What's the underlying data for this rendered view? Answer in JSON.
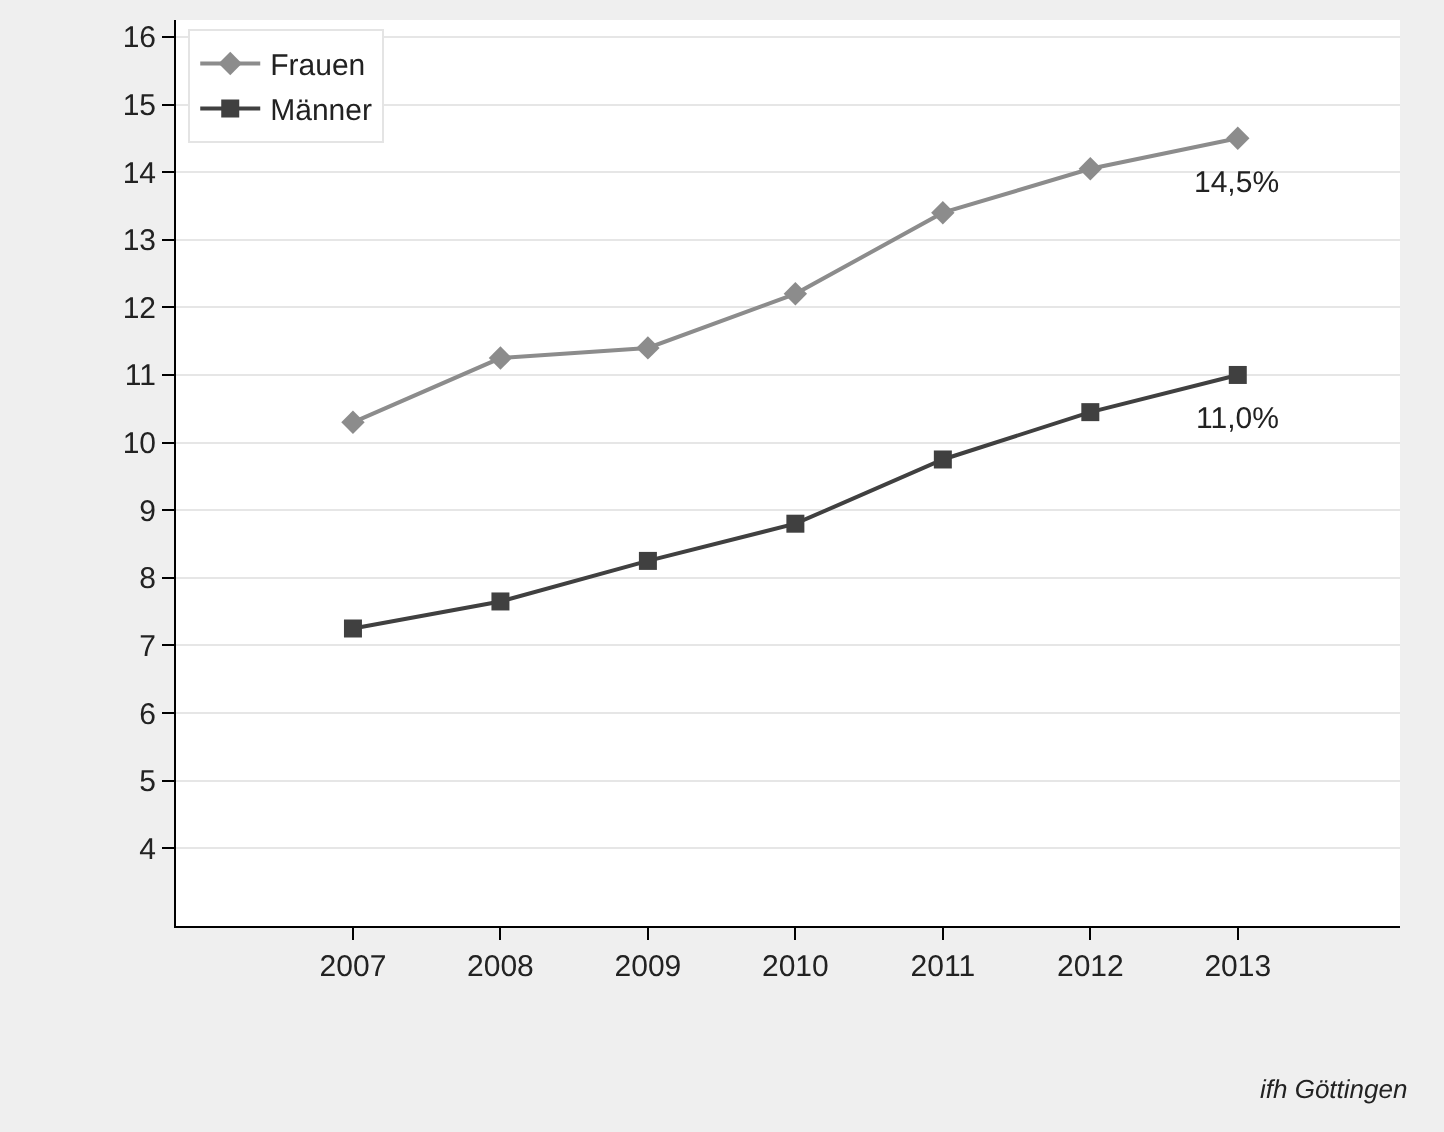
{
  "chart_data": {
    "type": "line",
    "x": [
      2007,
      2008,
      2009,
      2010,
      2011,
      2012,
      2013
    ],
    "series": [
      {
        "name": "Frauen",
        "color": "#8c8c8c",
        "marker": "diamond",
        "values": [
          10.3,
          11.25,
          11.4,
          12.2,
          13.4,
          14.05,
          14.5
        ]
      },
      {
        "name": "Männer",
        "color": "#404040",
        "marker": "square",
        "values": [
          7.25,
          7.65,
          8.25,
          8.8,
          9.75,
          10.45,
          11.0
        ]
      }
    ],
    "xlim": [
      2005.8,
      2014.1
    ],
    "xticks": [
      2007,
      2008,
      2009,
      2010,
      2011,
      2012,
      2013
    ],
    "ylim": [
      2.85,
      16.25
    ],
    "yticks": [
      4,
      5,
      6,
      7,
      8,
      9,
      10,
      11,
      12,
      13,
      14,
      15,
      16
    ],
    "grid": "y",
    "legend": "top left",
    "line_style": "solid",
    "annotations": [
      {
        "text": "14,5%",
        "x": 2013,
        "y": 14.5
      },
      {
        "text": "11,0%",
        "x": 2013,
        "y": 11.0
      },
      "ifh Göttingen"
    ]
  }
}
